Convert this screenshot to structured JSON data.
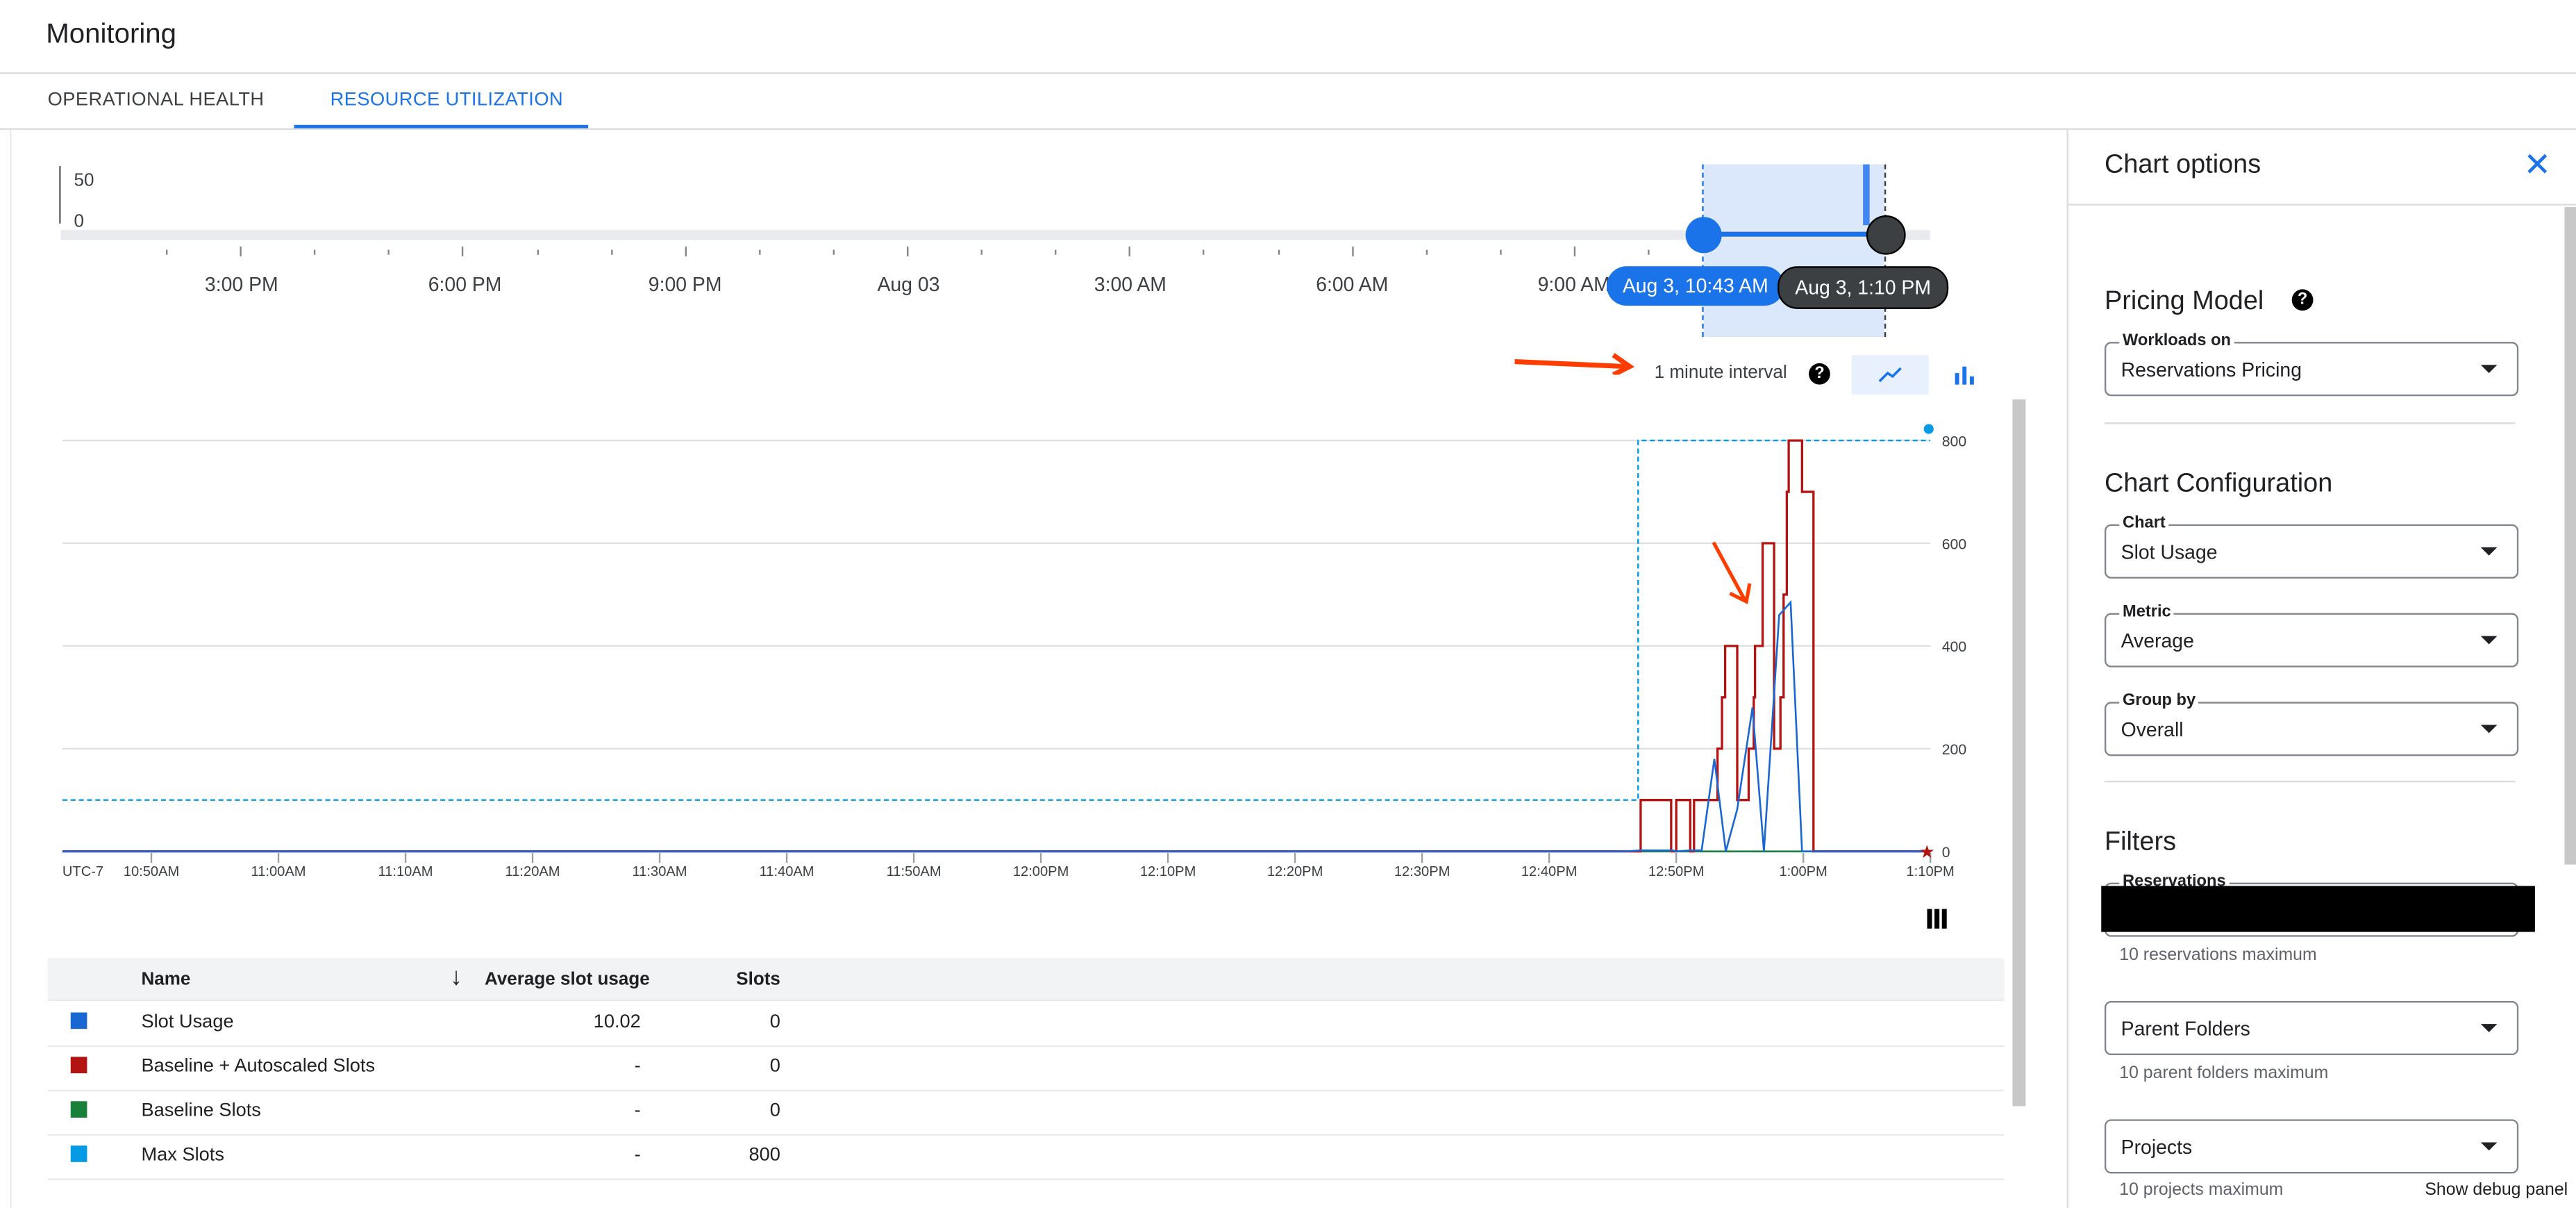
{
  "header": {
    "title": "Monitoring"
  },
  "tabs": [
    {
      "label": "OPERATIONAL HEALTH",
      "active": false
    },
    {
      "label": "RESOURCE UTILIZATION",
      "active": true
    }
  ],
  "overview": {
    "y_ticks": [
      "50",
      "0"
    ],
    "x_labels": [
      "3:00 PM",
      "6:00 PM",
      "9:00 PM",
      "Aug 03",
      "3:00 AM",
      "6:00 AM",
      "9:00 AM"
    ],
    "range_start": "Aug 3, 10:43 AM",
    "range_end": "Aug 3, 1:10 PM"
  },
  "toolbar": {
    "interval": "1 minute interval",
    "help_icon": "help-icon",
    "line_icon": "line-chart-icon",
    "bar_icon": "bar-chart-icon"
  },
  "chart_data": {
    "type": "line",
    "xlabel": "",
    "ylabel": "",
    "timezone": "UTC-7",
    "x_range": [
      "10:43",
      "13:10"
    ],
    "ylim": [
      0,
      800
    ],
    "y_ticks": [
      "0",
      "200",
      "400",
      "600",
      "800"
    ],
    "x_ticks": [
      "10:50",
      "11:00",
      "11:10",
      "11:20",
      "11:30",
      "11:40",
      "11:50",
      "12:00",
      "12:10",
      "12:20",
      "12:30",
      "12:40",
      "12:50",
      "13:00",
      "13:10"
    ],
    "x_tick_labels": [
      "10:50AM",
      "11:00AM",
      "11:10AM",
      "11:20AM",
      "11:30AM",
      "11:40AM",
      "11:50AM",
      "12:00PM",
      "12:10PM",
      "12:20PM",
      "12:30PM",
      "12:40PM",
      "12:50PM",
      "1:00PM",
      "1:10PM"
    ],
    "grid": true,
    "series": [
      {
        "name": "Max Slots",
        "color": "#039be5",
        "style": "dashed-step",
        "points": [
          [
            "10:43",
            100
          ],
          [
            "12:47",
            100
          ],
          [
            "12:47",
            800
          ],
          [
            "13:10",
            800
          ]
        ]
      },
      {
        "name": "Baseline Slots",
        "color": "#188038",
        "style": "line",
        "points": [
          [
            "10:43",
            0
          ],
          [
            "13:10",
            0
          ]
        ]
      },
      {
        "name": "Baseline + Autoscaled Slots",
        "color": "#b31412",
        "style": "step",
        "points": [
          [
            "10:43",
            0
          ],
          [
            "12:47:12",
            100
          ],
          [
            "12:49:36",
            0
          ],
          [
            "12:50:00",
            100
          ],
          [
            "12:51:06",
            0
          ],
          [
            "12:51:24",
            100
          ],
          [
            "12:53:15",
            200
          ],
          [
            "12:53:36",
            300
          ],
          [
            "12:53:51",
            400
          ],
          [
            "12:54:48",
            100
          ],
          [
            "12:55:42",
            200
          ],
          [
            "12:56:06",
            300
          ],
          [
            "12:56:12",
            400
          ],
          [
            "12:56:48",
            600
          ],
          [
            "12:57:42",
            200
          ],
          [
            "12:58:12",
            300
          ],
          [
            "12:58:27",
            500
          ],
          [
            "12:58:42",
            700
          ],
          [
            "12:58:51",
            800
          ],
          [
            "12:59:54",
            700
          ],
          [
            "13:00:48",
            0
          ],
          [
            "13:10",
            0
          ]
        ]
      },
      {
        "name": "Slot Usage",
        "color": "#1967d2",
        "style": "line",
        "points": [
          [
            "10:43",
            0
          ],
          [
            "12:46",
            0
          ],
          [
            "12:47:12",
            2
          ],
          [
            "12:49:42",
            2
          ],
          [
            "12:50:00",
            0
          ],
          [
            "12:51:06",
            2
          ],
          [
            "12:52:00",
            2
          ],
          [
            "12:53:00",
            180
          ],
          [
            "12:53:54",
            0
          ],
          [
            "12:54:48",
            82
          ],
          [
            "12:56:00",
            280
          ],
          [
            "12:56:54",
            0
          ],
          [
            "12:58:06",
            460
          ],
          [
            "12:59:00",
            485
          ],
          [
            "12:59:54",
            0
          ],
          [
            "13:10",
            0
          ]
        ]
      }
    ]
  },
  "table": {
    "headers": {
      "name": "Name",
      "avg": "Average slot usage",
      "slots": "Slots"
    },
    "rows": [
      {
        "name": "Slot Usage",
        "avg": "10.02",
        "slots": "0",
        "color": "#1967d2"
      },
      {
        "name": "Baseline + Autoscaled Slots",
        "avg": "-",
        "slots": "0",
        "color": "#b31412"
      },
      {
        "name": "Baseline Slots",
        "avg": "-",
        "slots": "0",
        "color": "#188038"
      },
      {
        "name": "Max Slots",
        "avg": "-",
        "slots": "800",
        "color": "#039be5"
      }
    ]
  },
  "panel": {
    "title": "Chart options",
    "pricing_title": "Pricing Model",
    "workloads": {
      "label": "Workloads on",
      "value": "Reservations Pricing"
    },
    "config_title": "Chart Configuration",
    "chart": {
      "label": "Chart",
      "value": "Slot Usage"
    },
    "metric": {
      "label": "Metric",
      "value": "Average"
    },
    "group": {
      "label": "Group by",
      "value": "Overall"
    },
    "filters_title": "Filters",
    "reservations": {
      "label": "Reservations",
      "hint": "10 reservations maximum"
    },
    "folders": {
      "label": "Parent Folders",
      "hint": "10 parent folders maximum"
    },
    "projects": {
      "label": "Projects",
      "hint": "10 projects maximum"
    },
    "debug": "Show debug panel"
  }
}
